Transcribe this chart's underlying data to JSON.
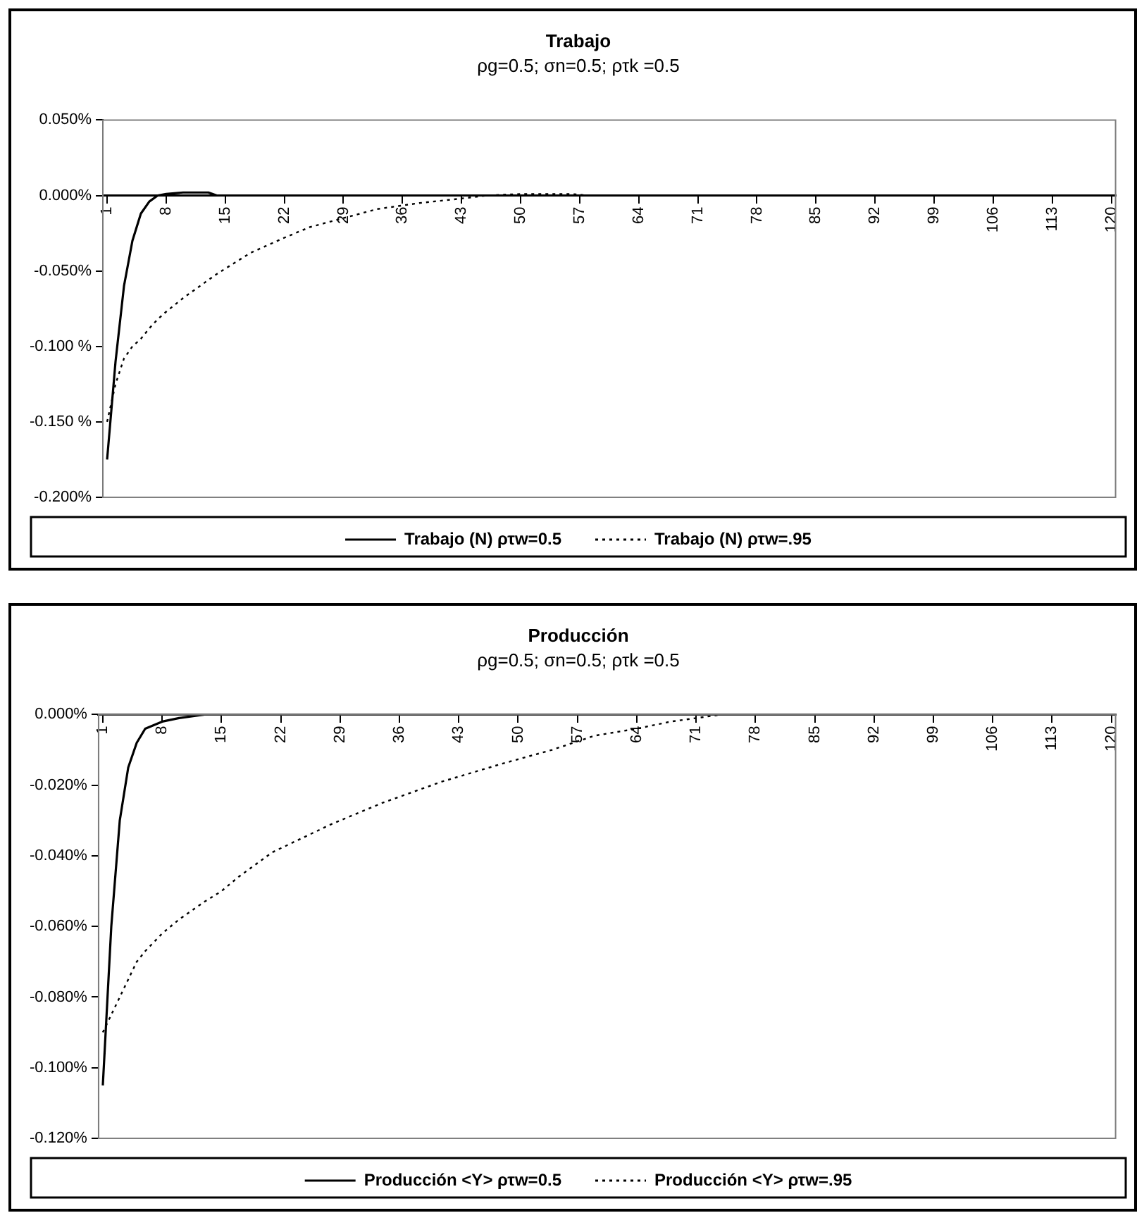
{
  "chart_data": [
    {
      "type": "line",
      "title": "Trabajo",
      "subtitle": "ρg=0.5; σn=0.5; ρτk =0.5",
      "x": [
        1,
        2,
        3,
        4,
        5,
        6,
        7,
        8,
        10,
        11,
        13,
        14,
        18,
        22,
        25,
        29,
        33,
        38,
        43,
        46,
        50,
        56,
        58,
        64,
        71,
        78,
        85,
        92,
        99,
        106,
        113,
        120
      ],
      "series": [
        {
          "name": "Trabajo (N) ρτw=0.5",
          "color": "#000000",
          "line_style": "solid",
          "values": [
            -0.175,
            -0.11,
            -0.06,
            -0.03,
            -0.012,
            -0.004,
            0,
            0.001,
            0.002,
            0.002,
            0.002,
            0,
            0,
            0,
            0,
            0,
            0,
            0,
            0,
            0,
            0,
            0,
            0,
            0,
            0,
            0,
            0,
            0,
            0,
            0,
            0,
            0
          ]
        },
        {
          "name": "Trabajo (N) ρτw=.95",
          "color": "#000000",
          "line_style": "dotted",
          "values": [
            -0.15,
            -0.125,
            -0.108,
            -0.1,
            -0.095,
            -0.088,
            -0.082,
            -0.077,
            -0.068,
            -0.064,
            -0.056,
            -0.052,
            -0.038,
            -0.028,
            -0.021,
            -0.015,
            -0.009,
            -0.005,
            -0.002,
            0,
            0.001,
            0.001,
            0,
            0,
            0,
            0,
            0,
            0,
            0,
            0,
            0,
            0
          ]
        }
      ],
      "xlim": [
        0.5,
        120.5
      ],
      "xticks": [
        1,
        8,
        15,
        22,
        29,
        36,
        43,
        50,
        57,
        64,
        71,
        78,
        85,
        92,
        99,
        106,
        113,
        120
      ],
      "ylim": [
        -0.2,
        0.05
      ],
      "yticks": [
        {
          "value": 0.05,
          "label": "0.050%"
        },
        {
          "value": 0,
          "label": "0.000%"
        },
        {
          "value": -0.05,
          "label": "-0.050%"
        },
        {
          "value": -0.1,
          "label": "-0.100 %"
        },
        {
          "value": -0.15,
          "label": "-0.150 %"
        },
        {
          "value": -0.2,
          "label": "-0.200%"
        }
      ],
      "grid": false,
      "legend": "bottom",
      "marker": "none"
    },
    {
      "type": "line",
      "title": "Producción",
      "subtitle": "ρg=0.5; σn=0.5; ρτk =0.5",
      "x": [
        1,
        2,
        3,
        4,
        5,
        6,
        8,
        10,
        13,
        15,
        17,
        21,
        28,
        34,
        41,
        48,
        54,
        59,
        64,
        68,
        74,
        85,
        92,
        99,
        106,
        113,
        120
      ],
      "series": [
        {
          "name": "Producción <Y> ρτw=0.5",
          "color": "#000000",
          "line_style": "solid",
          "values": [
            -0.105,
            -0.06,
            -0.03,
            -0.015,
            -0.008,
            -0.004,
            -0.002,
            -0.001,
            0,
            0,
            0,
            0,
            0,
            0,
            0,
            0,
            0,
            0,
            0,
            0,
            0,
            0,
            0,
            0,
            0,
            0,
            0
          ]
        },
        {
          "name": "Producción <Y> ρτw=.95",
          "color": "#000000",
          "line_style": "dotted",
          "values": [
            -0.09,
            -0.085,
            -0.08,
            -0.075,
            -0.07,
            -0.067,
            -0.062,
            -0.058,
            -0.053,
            -0.05,
            -0.046,
            -0.039,
            -0.031,
            -0.025,
            -0.019,
            -0.014,
            -0.01,
            -0.006,
            -0.004,
            -0.002,
            0,
            0,
            0,
            0,
            0,
            0,
            0
          ]
        }
      ],
      "xlim": [
        0.5,
        120.5
      ],
      "xticks": [
        1,
        8,
        15,
        22,
        29,
        36,
        43,
        50,
        57,
        64,
        71,
        78,
        85,
        92,
        99,
        106,
        113,
        120
      ],
      "ylim": [
        -0.12,
        0
      ],
      "yticks": [
        {
          "value": 0,
          "label": "0.000%"
        },
        {
          "value": -0.02,
          "label": "-0.020%"
        },
        {
          "value": -0.04,
          "label": "-0.040%"
        },
        {
          "value": -0.06,
          "label": "-0.060%"
        },
        {
          "value": -0.08,
          "label": "-0.080%"
        },
        {
          "value": -0.1,
          "label": "-0.100%"
        },
        {
          "value": -0.12,
          "label": "-0.120%"
        }
      ],
      "grid": false,
      "legend": "bottom",
      "marker": "none"
    }
  ]
}
